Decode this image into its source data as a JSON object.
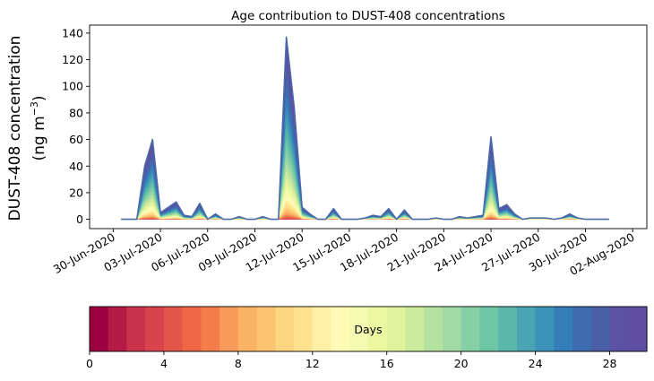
{
  "chart_data": {
    "type": "area",
    "title": "Age contribution to DUST-408 concentrations",
    "ylabel_line1": "DUST-408 concentration",
    "ylabel_line2_prefix": "(ng m",
    "ylabel_line2_sup": "−3",
    "ylabel_line2_suffix": ")",
    "xlabel": "",
    "ylim": [
      -7,
      146
    ],
    "yticks": [
      0,
      20,
      40,
      60,
      80,
      100,
      120,
      140
    ],
    "xticks": [
      "30-Jun-2020",
      "03-Jul-2020",
      "06-Jul-2020",
      "09-Jul-2020",
      "12-Jul-2020",
      "15-Jul-2020",
      "18-Jul-2020",
      "21-Jul-2020",
      "24-Jul-2020",
      "27-Jul-2020",
      "30-Jul-2020",
      "02-Aug-2020"
    ],
    "x_start_date": "2020-06-30",
    "x_range": [
      -1.5,
      33.9
    ],
    "x": [
      0.5,
      1.0,
      1.5,
      2.0,
      2.5,
      3.0,
      3.5,
      4.0,
      4.5,
      5.0,
      5.5,
      6.0,
      6.5,
      7.0,
      7.5,
      8.0,
      8.5,
      9.0,
      9.5,
      10.0,
      10.5,
      11.0,
      11.5,
      12.0,
      12.5,
      13.0,
      13.5,
      14.0,
      14.5,
      15.0,
      15.5,
      16.0,
      16.5,
      17.0,
      17.5,
      18.0,
      18.5,
      19.0,
      19.5,
      20.0,
      20.5,
      21.0,
      21.5,
      22.0,
      22.5,
      23.0,
      23.5,
      24.0,
      24.5,
      25.0,
      25.5,
      26.0,
      26.5,
      27.0,
      27.5,
      28.0,
      28.5,
      29.0,
      29.5,
      30.0,
      30.5,
      31.0,
      31.5
    ],
    "total": [
      0,
      0,
      0,
      40,
      60,
      5,
      9,
      13,
      3,
      2,
      12,
      0,
      4,
      0,
      0,
      2,
      0,
      0,
      2,
      0,
      0,
      137,
      84,
      9,
      4,
      0,
      0,
      8,
      0,
      0,
      0,
      1,
      3,
      2,
      8,
      0,
      7,
      0,
      0,
      0,
      1,
      0,
      0,
      2,
      1,
      2,
      3,
      62,
      8,
      11,
      4,
      0,
      1,
      1,
      1,
      0,
      1,
      4,
      1,
      0,
      0,
      0,
      0
    ],
    "age_bins": 30,
    "colorbar": {
      "label": "Days",
      "ticks": [
        0,
        4,
        8,
        12,
        16,
        20,
        24,
        28
      ],
      "range": [
        0,
        30
      ],
      "colors": [
        "#9e0142",
        "#b51b47",
        "#cb334c",
        "#d8434e",
        "#e4564a",
        "#ef6746",
        "#f47c4a",
        "#f89a59",
        "#fab265",
        "#fcc471",
        "#fdd580",
        "#fee28e",
        "#fff0a8",
        "#fffbb6",
        "#f4fab0",
        "#ecf7a2",
        "#e0f29b",
        "#cdeb9d",
        "#b6e2a1",
        "#a0d9a4",
        "#87cfa5",
        "#6fc6a5",
        "#5bb7a9",
        "#4aa4b2",
        "#3d92b8",
        "#347eb8",
        "#3d6db0",
        "#4b5fa7",
        "#5c51a3",
        "#5e4fa2"
      ]
    },
    "outline_color": "#4a69a8"
  }
}
